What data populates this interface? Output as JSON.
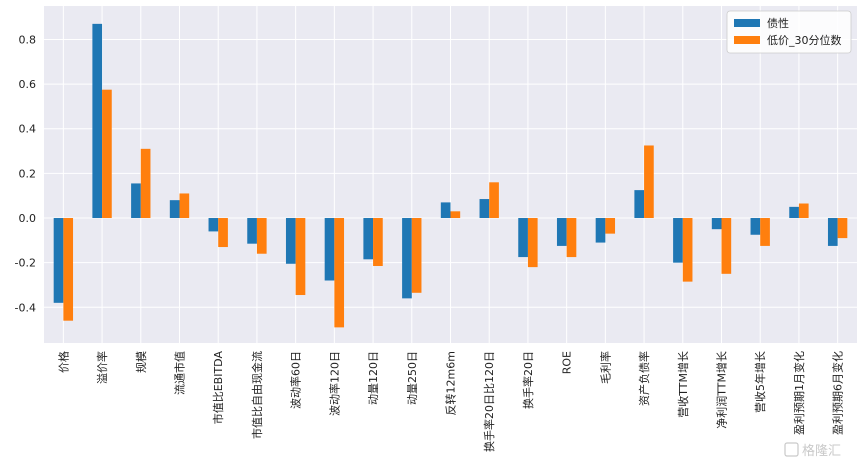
{
  "chart_data": {
    "type": "bar",
    "categories": [
      "价格",
      "溢价率",
      "规模",
      "流通市值",
      "市值比EBITDA",
      "市值比自由现金流",
      "波动率60日",
      "波动率120日",
      "动量120日",
      "动量250日",
      "反转12m6m",
      "换手率20日比120日",
      "换手率20日",
      "ROE",
      "毛利率",
      "资产负债率",
      "营收TTM增长",
      "净利润TTM增长",
      "营收5年增长",
      "盈利预期1月变化",
      "盈利预期6月变化"
    ],
    "series": [
      {
        "name": "债性",
        "color": "#1f77b4",
        "values": [
          -0.38,
          0.87,
          0.155,
          0.08,
          -0.06,
          -0.115,
          -0.205,
          -0.28,
          -0.185,
          -0.36,
          0.07,
          0.085,
          -0.175,
          -0.125,
          -0.11,
          0.125,
          -0.2,
          -0.05,
          -0.075,
          0.05,
          -0.125
        ]
      },
      {
        "name": "低价_30分位数",
        "color": "#ff7f0e",
        "values": [
          -0.46,
          0.575,
          0.31,
          0.11,
          -0.13,
          -0.16,
          -0.345,
          -0.49,
          -0.215,
          -0.335,
          0.03,
          0.16,
          -0.22,
          -0.175,
          -0.07,
          0.325,
          -0.285,
          -0.25,
          -0.125,
          0.065,
          -0.09
        ]
      }
    ],
    "yticks": [
      -0.4,
      -0.2,
      0.0,
      0.2,
      0.4,
      0.6,
      0.8
    ],
    "ylim": [
      -0.56,
      0.95
    ],
    "grid": true,
    "legend_position": "top-right",
    "title": "",
    "xlabel": "",
    "ylabel": ""
  },
  "watermark": {
    "text": "格隆汇"
  }
}
